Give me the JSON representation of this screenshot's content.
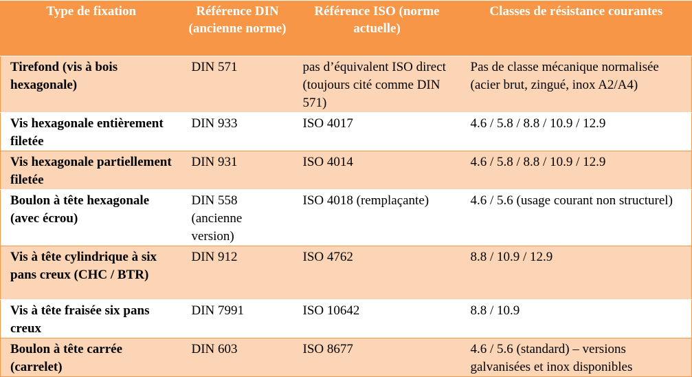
{
  "table": {
    "headers": [
      "Type de fixation",
      "Référence DIN (ancienne norme)",
      "Référence ISO (norme actuelle)",
      "Classes de résistance courantes"
    ],
    "rows": [
      {
        "type": "Tirefond (vis à bois hexagonale)",
        "din": "DIN 571",
        "iso": "pas d’équivalent ISO direct (toujours cité comme DIN 571)",
        "classes": "Pas de classe mécanique normalisée (acier brut, zingué, inox A2/A4)"
      },
      {
        "type": "Vis hexagonale entièrement filetée",
        "din": "DIN 933",
        "iso": "ISO 4017",
        "classes": "4.6 / 5.8 / 8.8 / 10.9 / 12.9"
      },
      {
        "type": "Vis hexagonale partiellement filetée",
        "din": "DIN 931",
        "iso": "ISO 4014",
        "classes": "4.6 / 5.8 / 8.8 / 10.9 / 12.9"
      },
      {
        "type": "Boulon à tête hexagonale (avec écrou)",
        "din": "DIN 558 (ancienne version)",
        "iso": "ISO 4018 (remplaçante)",
        "classes": "4.6 / 5.6 (usage courant non structurel)"
      },
      {
        "type": "Vis à tête cylindrique à six pans creux (CHC / BTR)",
        "din": "DIN 912",
        "iso": "ISO 4762",
        "classes": "8.8 / 10.9 / 12.9"
      },
      {
        "type": "Vis à tête fraisée six pans creux",
        "din": "DIN 7991",
        "iso": "ISO 10642",
        "classes": "8.8 / 10.9"
      },
      {
        "type": "Boulon à tête carrée (carrelet)",
        "din": "DIN 603",
        "iso": "ISO 8677",
        "classes": "4.6 / 5.6 (standard) – versions galvanisées et inox disponibles"
      }
    ]
  },
  "colors": {
    "header_bg": "#f79646",
    "band_bg": "#fbd5b5",
    "plain_bg": "#ffffff"
  }
}
